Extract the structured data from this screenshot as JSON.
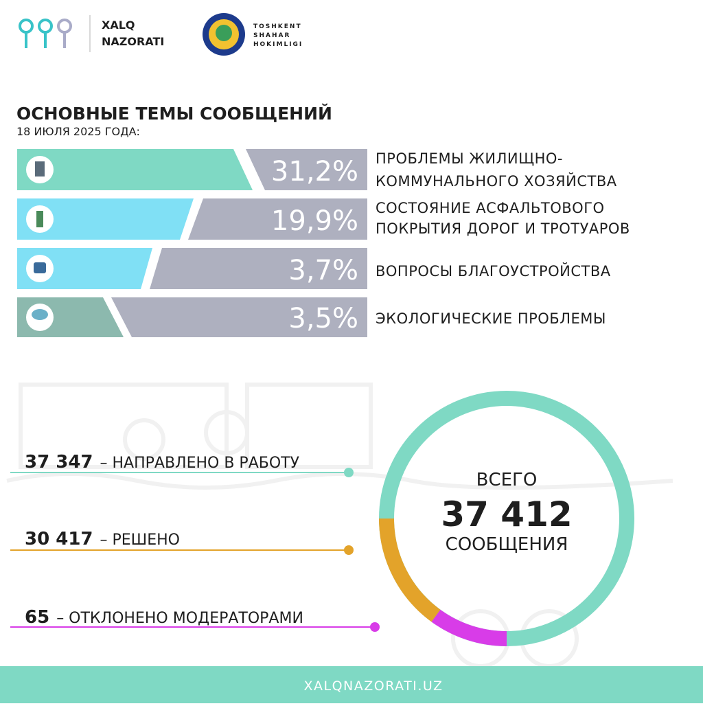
{
  "header": {
    "brand": [
      "XALQ",
      "NAZORATI"
    ],
    "partner": [
      "TOSHKENT",
      "SHAHAR",
      "HOKIMLIGI"
    ]
  },
  "title": "ОСНОВНЫЕ ТЕМЫ СООБЩЕНИЙ",
  "subtitle": "18 ИЮЛЯ 2025 ГОДА:",
  "topics": [
    {
      "share": "31,2%",
      "label": [
        "ПРОБЛЕМЫ ЖИЛИЩНО-",
        "КОММУНАЛЬНОГО ХОЗЯЙСТВА"
      ]
    },
    {
      "share": "19,9%",
      "label": [
        "СОСТОЯНИЕ АСФАЛЬТОВОГО",
        "ПОКРЫТИЯ ДОРОГ И ТРОТУАРОВ"
      ]
    },
    {
      "share": "3,7%",
      "label": [
        "ВОПРОСЫ БЛАГОУСТРОЙСТВА"
      ]
    },
    {
      "share": "3,5%",
      "label": [
        "ЭКОЛОГИЧЕСКИЕ ПРОБЛЕМЫ"
      ]
    }
  ],
  "stats": [
    {
      "number": "37 347",
      "label": "– НАПРАВЛЕНО В РАБОТУ"
    },
    {
      "number": "30 417",
      "label": "– РЕШЕНО"
    },
    {
      "number": "65",
      "label": "– ОТКЛОНЕНО МОДЕРАТОРАМИ"
    }
  ],
  "total": {
    "top": "ВСЕГО",
    "number": "37 412",
    "bottom": "СООБЩЕНИЯ"
  },
  "footer": "XALQNAZORATI.UZ"
}
